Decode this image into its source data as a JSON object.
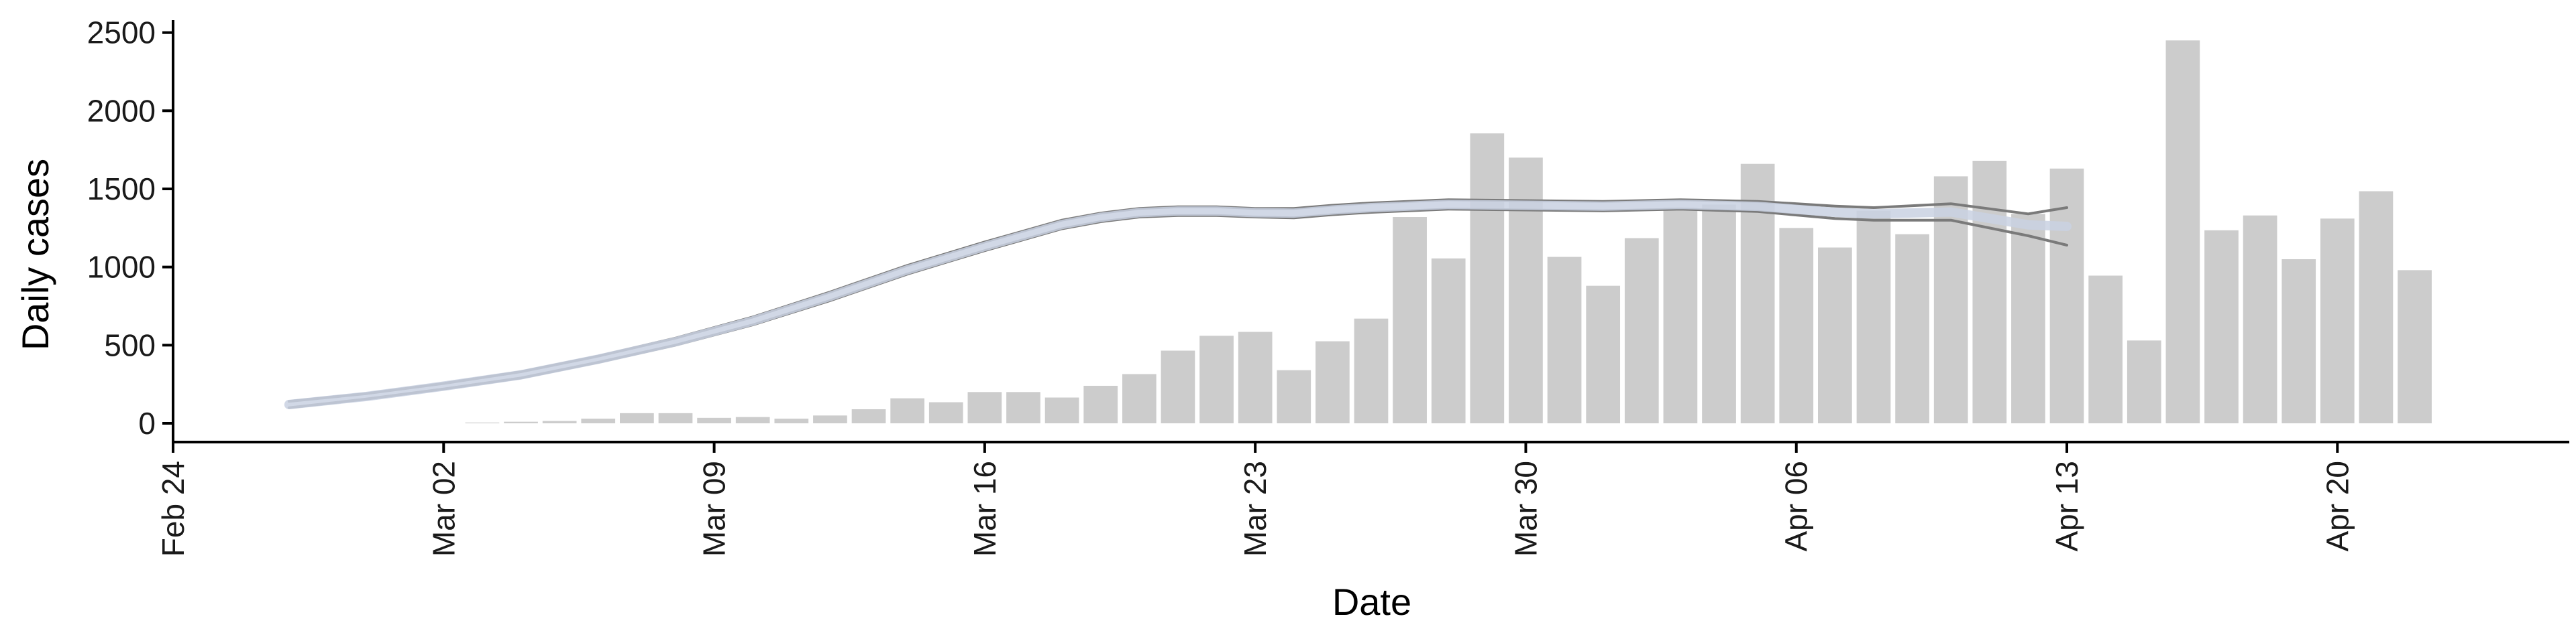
{
  "chart_data": {
    "type": "bar",
    "title": "",
    "xlabel": "Date",
    "ylabel": "Daily cases",
    "ylim": [
      -120,
      2580
    ],
    "yticks": [
      0,
      500,
      1000,
      1500,
      2000,
      2500
    ],
    "xticks": [
      {
        "date": "2020-02-24",
        "label": "Feb 24"
      },
      {
        "date": "2020-03-02",
        "label": "Mar 02"
      },
      {
        "date": "2020-03-09",
        "label": "Mar 09"
      },
      {
        "date": "2020-03-16",
        "label": "Mar 16"
      },
      {
        "date": "2020-03-23",
        "label": "Mar 23"
      },
      {
        "date": "2020-03-30",
        "label": "Mar 30"
      },
      {
        "date": "2020-04-06",
        "label": "Apr 06"
      },
      {
        "date": "2020-04-13",
        "label": "Apr 13"
      },
      {
        "date": "2020-04-20",
        "label": "Apr 20"
      }
    ],
    "xlim": [
      "2020-02-24",
      "2020-04-26"
    ],
    "grid": false,
    "bars": {
      "color": "#cccccc",
      "x": [
        "2020-03-03",
        "2020-03-04",
        "2020-03-05",
        "2020-03-06",
        "2020-03-07",
        "2020-03-08",
        "2020-03-09",
        "2020-03-10",
        "2020-03-11",
        "2020-03-12",
        "2020-03-13",
        "2020-03-14",
        "2020-03-15",
        "2020-03-16",
        "2020-03-17",
        "2020-03-18",
        "2020-03-19",
        "2020-03-20",
        "2020-03-21",
        "2020-03-22",
        "2020-03-23",
        "2020-03-24",
        "2020-03-25",
        "2020-03-26",
        "2020-03-27",
        "2020-03-28",
        "2020-03-29",
        "2020-03-30",
        "2020-03-31",
        "2020-04-01",
        "2020-04-02",
        "2020-04-03",
        "2020-04-04",
        "2020-04-05",
        "2020-04-06",
        "2020-04-07",
        "2020-04-08",
        "2020-04-09",
        "2020-04-10",
        "2020-04-11",
        "2020-04-12",
        "2020-04-13",
        "2020-04-14",
        "2020-04-15",
        "2020-04-16",
        "2020-04-17",
        "2020-04-18",
        "2020-04-19",
        "2020-04-20",
        "2020-04-21",
        "2020-04-22"
      ],
      "values": [
        5,
        10,
        15,
        30,
        65,
        65,
        35,
        40,
        30,
        50,
        90,
        160,
        135,
        200,
        200,
        165,
        240,
        315,
        465,
        560,
        585,
        340,
        525,
        670,
        1320,
        1055,
        1855,
        1700,
        1065,
        880,
        1185,
        1380,
        1400,
        1660,
        1250,
        1125,
        1360,
        1210,
        1580,
        1680,
        1340,
        1630,
        945,
        530,
        2450,
        1235,
        1330,
        1050,
        1310,
        1485,
        980
      ]
    },
    "series": [
      {
        "role": "upper-band",
        "color": "#7a7a7a",
        "x": [
          "2020-02-27",
          "2020-02-29",
          "2020-03-02",
          "2020-03-04",
          "2020-03-06",
          "2020-03-08",
          "2020-03-10",
          "2020-03-12",
          "2020-03-14",
          "2020-03-16",
          "2020-03-18",
          "2020-03-19",
          "2020-03-20",
          "2020-03-21",
          "2020-03-22",
          "2020-03-23",
          "2020-03-24",
          "2020-03-25",
          "2020-03-26",
          "2020-03-28",
          "2020-03-30",
          "2020-04-01",
          "2020-04-03",
          "2020-04-05",
          "2020-04-07",
          "2020-04-08",
          "2020-04-10",
          "2020-04-12",
          "2020-04-13"
        ],
        "values": [
          140,
          190,
          255,
          330,
          430,
          545,
          680,
          840,
          1010,
          1160,
          1300,
          1345,
          1375,
          1385,
          1385,
          1375,
          1375,
          1395,
          1410,
          1430,
          1425,
          1420,
          1430,
          1420,
          1390,
          1380,
          1405,
          1340,
          1380
        ]
      },
      {
        "role": "lower-band",
        "color": "#7a7a7a",
        "x": [
          "2020-02-27",
          "2020-02-29",
          "2020-03-02",
          "2020-03-04",
          "2020-03-06",
          "2020-03-08",
          "2020-03-10",
          "2020-03-12",
          "2020-03-14",
          "2020-03-16",
          "2020-03-18",
          "2020-03-19",
          "2020-03-20",
          "2020-03-21",
          "2020-03-22",
          "2020-03-23",
          "2020-03-24",
          "2020-03-25",
          "2020-03-26",
          "2020-03-28",
          "2020-03-30",
          "2020-04-01",
          "2020-04-03",
          "2020-04-05",
          "2020-04-07",
          "2020-04-08",
          "2020-04-10",
          "2020-04-12",
          "2020-04-13"
        ],
        "values": [
          100,
          155,
          220,
          290,
          390,
          500,
          630,
          785,
          955,
          1105,
          1245,
          1290,
          1320,
          1330,
          1330,
          1320,
          1315,
          1335,
          1350,
          1370,
          1365,
          1360,
          1370,
          1355,
          1310,
          1300,
          1300,
          1200,
          1140
        ]
      },
      {
        "role": "estimate",
        "color": "#c9d1e2",
        "x": [
          "2020-02-27",
          "2020-02-29",
          "2020-03-02",
          "2020-03-04",
          "2020-03-06",
          "2020-03-08",
          "2020-03-10",
          "2020-03-12",
          "2020-03-14",
          "2020-03-16",
          "2020-03-18",
          "2020-03-19",
          "2020-03-20",
          "2020-03-21",
          "2020-03-22",
          "2020-03-23",
          "2020-03-24",
          "2020-03-25",
          "2020-03-26",
          "2020-03-28",
          "2020-03-30",
          "2020-04-01",
          "2020-04-03",
          "2020-04-05",
          "2020-04-07",
          "2020-04-08",
          "2020-04-10",
          "2020-04-12",
          "2020-04-13"
        ],
        "values": [
          120,
          172,
          238,
          310,
          410,
          522,
          655,
          812,
          982,
          1132,
          1272,
          1318,
          1348,
          1358,
          1358,
          1348,
          1345,
          1365,
          1380,
          1400,
          1395,
          1390,
          1400,
          1388,
          1350,
          1340,
          1352,
          1270,
          1260
        ]
      }
    ]
  }
}
